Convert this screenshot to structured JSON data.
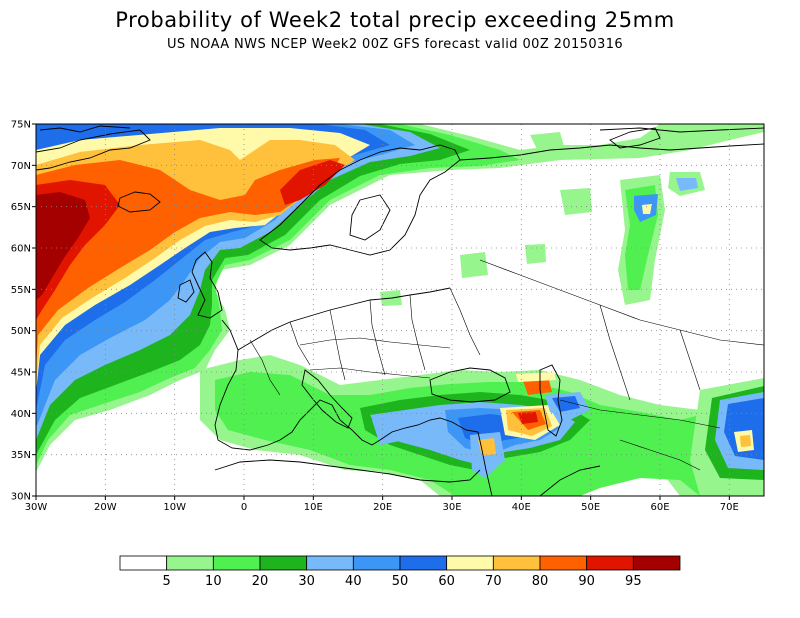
{
  "title": "Probability of Week2 total precip exceeding 25mm",
  "subtitle": "US NOAA NWS NCEP Week2 00Z GFS forecast valid 00Z 20150316",
  "map": {
    "lon_range": [
      -30,
      75
    ],
    "lat_range": [
      30,
      75
    ],
    "grid": "dotted",
    "lat_ticks": [
      "30N",
      "35N",
      "40N",
      "45N",
      "50N",
      "55N",
      "60N",
      "65N",
      "70N",
      "75N"
    ],
    "lon_ticks": [
      "30W",
      "20W",
      "10W",
      "0",
      "10E",
      "20E",
      "30E",
      "40E",
      "50E",
      "60E",
      "70E"
    ]
  },
  "legend": {
    "labels": [
      "5",
      "10",
      "20",
      "30",
      "40",
      "50",
      "60",
      "70",
      "80",
      "90",
      "95"
    ],
    "colors": [
      "#ffffff",
      "#96f58c",
      "#50f050",
      "#1eb41e",
      "#78b9fa",
      "#3c96f5",
      "#1e6eeb",
      "#fffaaa",
      "#ffc03c",
      "#ff6000",
      "#e11400",
      "#a50000"
    ]
  }
}
